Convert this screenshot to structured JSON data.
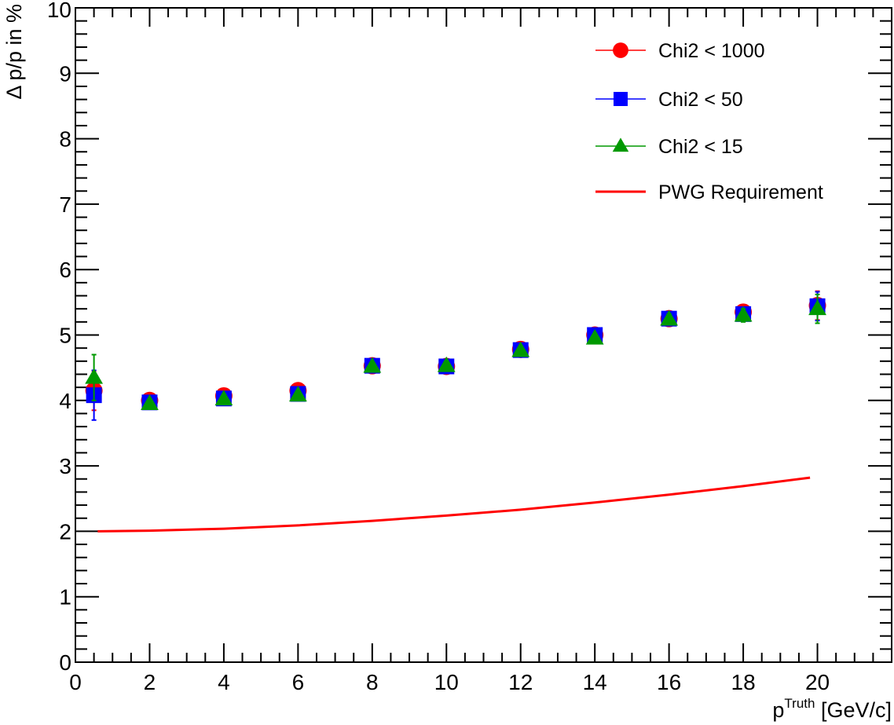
{
  "chart_data": {
    "type": "scatter",
    "xlabel_main": "p",
    "xlabel_sup": "Truth",
    "xlabel_unit": " [GeV/c]",
    "ylabel": "Δ p/p in %",
    "xlim": [
      0,
      22
    ],
    "ylim": [
      0,
      10
    ],
    "x_ticks": [
      0,
      2,
      4,
      6,
      8,
      10,
      12,
      14,
      16,
      18,
      20
    ],
    "y_ticks": [
      0,
      1,
      2,
      3,
      4,
      5,
      6,
      7,
      8,
      9,
      10
    ],
    "x_minor_step": 0.5,
    "y_minor_step": 0.2,
    "grid": false,
    "legend_position": "top-right",
    "series": [
      {
        "name": "Chi2 < 1000",
        "marker": "circle",
        "color": "#ff0000",
        "x": [
          0.5,
          2,
          4,
          6,
          8,
          10,
          12,
          14,
          16,
          18,
          20
        ],
        "y": [
          4.15,
          4.0,
          4.07,
          4.15,
          4.53,
          4.52,
          4.78,
          5.0,
          5.25,
          5.35,
          5.45
        ],
        "err": [
          0.3,
          0.03,
          0.03,
          0.03,
          0.04,
          0.04,
          0.05,
          0.06,
          0.08,
          0.1,
          0.22
        ]
      },
      {
        "name": "Chi2 < 50",
        "marker": "square",
        "color": "#0000ff",
        "x": [
          0.5,
          2,
          4,
          6,
          8,
          10,
          12,
          14,
          16,
          18,
          20
        ],
        "y": [
          4.08,
          3.97,
          4.03,
          4.1,
          4.53,
          4.52,
          4.77,
          5.0,
          5.25,
          5.32,
          5.44
        ],
        "err": [
          0.38,
          0.03,
          0.03,
          0.03,
          0.04,
          0.04,
          0.05,
          0.06,
          0.08,
          0.1,
          0.22
        ]
      },
      {
        "name": "Chi2 < 15",
        "marker": "triangle",
        "color": "#009900",
        "x": [
          0.5,
          2,
          4,
          6,
          8,
          10,
          12,
          14,
          16,
          18,
          20
        ],
        "y": [
          4.35,
          3.95,
          4.02,
          4.08,
          4.52,
          4.53,
          4.76,
          4.95,
          5.24,
          5.3,
          5.4
        ],
        "err": [
          0.35,
          0.03,
          0.03,
          0.03,
          0.04,
          0.04,
          0.05,
          0.06,
          0.08,
          0.1,
          0.22
        ]
      }
    ],
    "requirement_curve": {
      "name": "PWG Requirement",
      "color": "#ff0000",
      "x": [
        0.6,
        2,
        4,
        6,
        8,
        10,
        12,
        14,
        16,
        18,
        19.8
      ],
      "y": [
        2.0,
        2.01,
        2.04,
        2.09,
        2.16,
        2.24,
        2.33,
        2.44,
        2.56,
        2.69,
        2.82
      ]
    }
  }
}
